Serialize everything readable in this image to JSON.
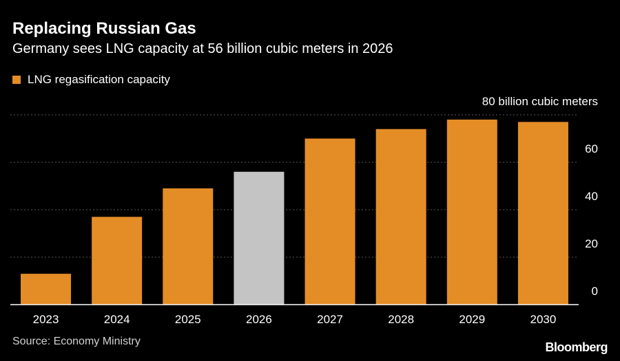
{
  "chart_data": {
    "type": "bar",
    "title": "Replacing Russian Gas",
    "subtitle": "Germany sees LNG capacity at 56 billion cubic meters in 2026",
    "categories": [
      "2023",
      "2024",
      "2025",
      "2026",
      "2027",
      "2028",
      "2029",
      "2030"
    ],
    "series": [
      {
        "name": "LNG regasification capacity",
        "values": [
          13,
          37,
          49,
          56,
          70,
          74,
          78,
          77
        ]
      }
    ],
    "highlight_index": 3,
    "colors": {
      "bar": "#E48D26",
      "highlight": "#C4C4C4",
      "grid": "#5a5a5a",
      "axis": "#ffffff"
    },
    "yticks": [
      {
        "value": 80,
        "label": "80 billion cubic meters"
      },
      {
        "value": 60,
        "label": "60"
      },
      {
        "value": 40,
        "label": "40"
      },
      {
        "value": 20,
        "label": "20"
      },
      {
        "value": 0,
        "label": "0"
      }
    ],
    "ylim": [
      0,
      80
    ],
    "legend_position": "top-left",
    "grid": true
  },
  "source": "Source: Economy Ministry",
  "brand": "Bloomberg"
}
